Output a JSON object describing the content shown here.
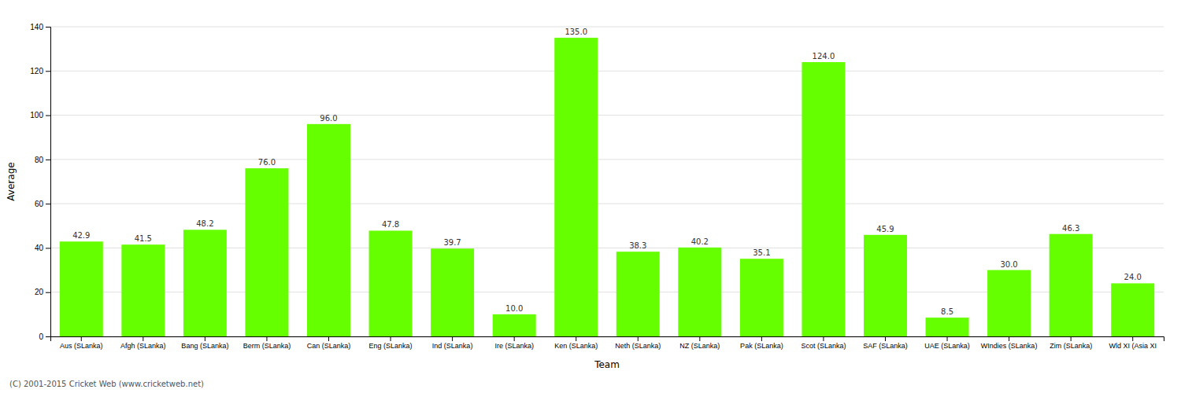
{
  "chart_data": {
    "type": "bar",
    "categories": [
      "Aus (SLanka)",
      "Afgh (SLanka)",
      "Bang (SLanka)",
      "Berm (SLanka)",
      "Can (SLanka)",
      "Eng (SLanka)",
      "Ind (SLanka)",
      "Ire (SLanka)",
      "Ken (SLanka)",
      "Neth (SLanka)",
      "NZ (SLanka)",
      "Pak (SLanka)",
      "Scot (SLanka)",
      "SAF (SLanka)",
      "UAE (SLanka)",
      "WIndies (SLanka)",
      "Zim (SLanka)",
      "Wld XI (Asia XI"
    ],
    "values": [
      42.9,
      41.5,
      48.2,
      76.0,
      96.0,
      47.8,
      39.7,
      10.0,
      135.0,
      38.3,
      40.2,
      35.1,
      124.0,
      45.9,
      8.5,
      30.0,
      46.3,
      24.0
    ],
    "value_labels": [
      "42.9",
      "41.5",
      "48.2",
      "76.0",
      "96.0",
      "47.8",
      "39.7",
      "10.0",
      "135.0",
      "38.3",
      "40.2",
      "35.1",
      "124.0",
      "45.9",
      "8.5",
      "30.0",
      "46.3",
      "24.0"
    ],
    "data_labels": true,
    "color": "#66ff00",
    "xlabel": "Team",
    "ylabel": "Average",
    "ylim": [
      0,
      140
    ],
    "yticks": [
      0,
      20,
      40,
      60,
      80,
      100,
      120,
      140
    ],
    "grid": true,
    "footer": "(C) 2001-2015 Cricket Web (www.cricketweb.net)"
  }
}
